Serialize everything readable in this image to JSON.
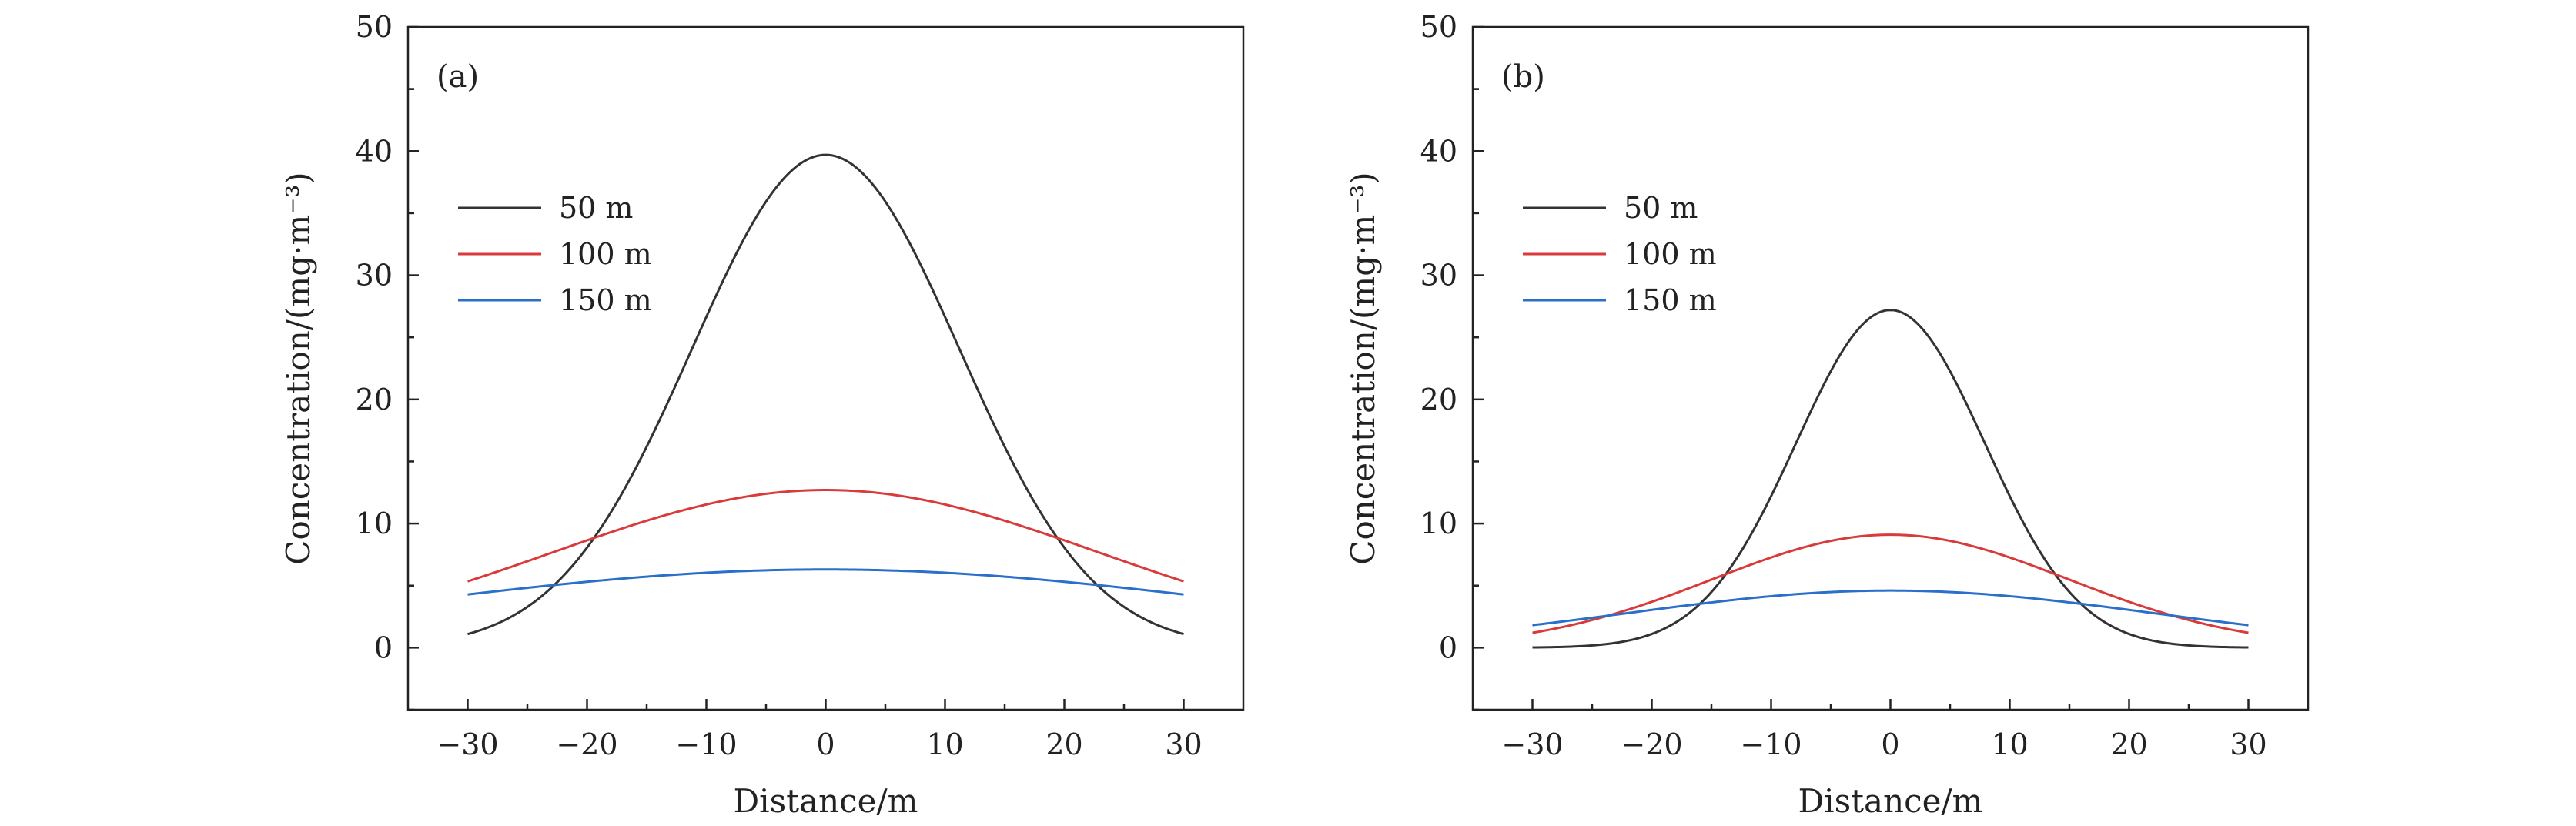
{
  "chart_data": [
    {
      "type": "line",
      "panel_label": "(a)",
      "xlabel": "Distance/m",
      "ylabel": "Concentration/(mg·m⁻³)",
      "xlim": [
        -35,
        35
      ],
      "ylim": [
        -5,
        50
      ],
      "xticks": [
        -30,
        -20,
        -10,
        0,
        10,
        20,
        30
      ],
      "xtick_labels": [
        "−30",
        "−20",
        "−10",
        "0",
        "10",
        "20",
        "30"
      ],
      "yticks": [
        0,
        10,
        20,
        30,
        40,
        50
      ],
      "ytick_labels": [
        "0",
        "10",
        "20",
        "30",
        "40",
        "50"
      ],
      "legend_position": "upper-left",
      "series": [
        {
          "name": "50 m",
          "color": "#333333",
          "peak": 39.7,
          "sigma": 11.2
        },
        {
          "name": "100 m",
          "color": "#d93a3a",
          "peak": 12.7,
          "sigma": 22.8
        },
        {
          "name": "150 m",
          "color": "#2a6fc9",
          "peak": 6.3,
          "sigma": 34.2
        }
      ]
    },
    {
      "type": "line",
      "panel_label": "(b)",
      "xlabel": "Distance/m",
      "ylabel": "Concentration/(mg·m⁻³)",
      "xlim": [
        -35,
        35
      ],
      "ylim": [
        -5,
        50
      ],
      "xticks": [
        -30,
        -20,
        -10,
        0,
        10,
        20,
        30
      ],
      "xtick_labels": [
        "−30",
        "−20",
        "−10",
        "0",
        "10",
        "20",
        "30"
      ],
      "yticks": [
        0,
        10,
        20,
        30,
        40,
        50
      ],
      "ytick_labels": [
        "0",
        "10",
        "20",
        "30",
        "40",
        "50"
      ],
      "legend_position": "upper-left",
      "series": [
        {
          "name": "50 m",
          "color": "#333333",
          "peak": 27.2,
          "sigma": 7.9
        },
        {
          "name": "100 m",
          "color": "#d93a3a",
          "peak": 9.1,
          "sigma": 14.9
        },
        {
          "name": "150 m",
          "color": "#2a6fc9",
          "peak": 4.6,
          "sigma": 22.0
        }
      ]
    }
  ]
}
